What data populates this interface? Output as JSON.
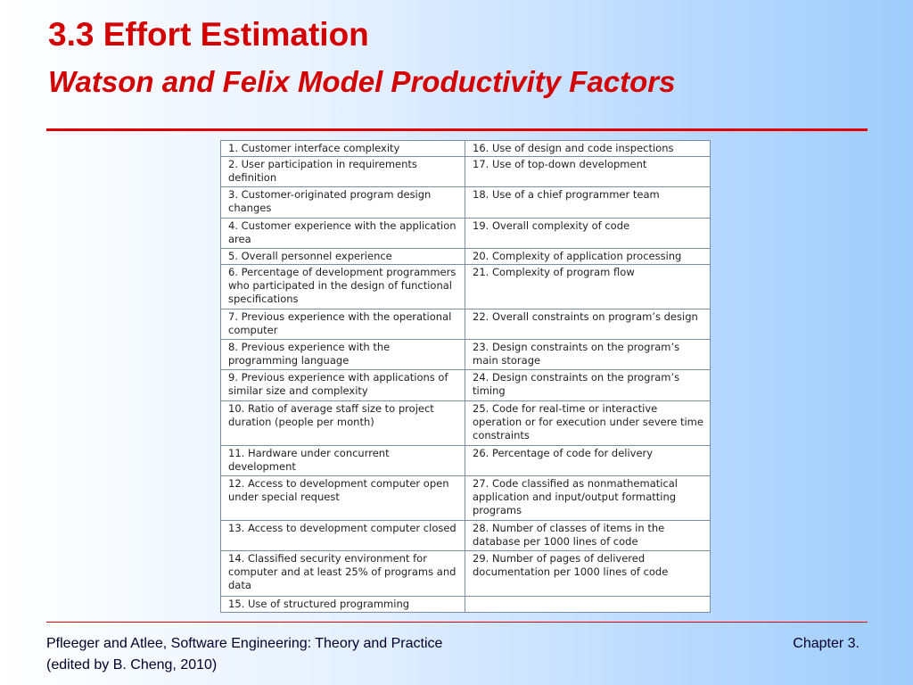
{
  "slide": {
    "title": "3.3 Effort Estimation",
    "subtitle": "Watson and Felix Model Productivity Factors"
  },
  "factors": [
    [
      "1.  Customer interface complexity",
      "16.  Use of design and code inspections"
    ],
    [
      "2.  User participation in requirements definition",
      "17.  Use of top-down development"
    ],
    [
      "3.  Customer-originated program design changes",
      "18.  Use of a chief programmer team"
    ],
    [
      "4.  Customer experience with the application area",
      "19.  Overall complexity of code"
    ],
    [
      "5.  Overall personnel experience",
      "20.  Complexity of application processing"
    ],
    [
      "6.  Percentage of development programmers who participated in the design of functional specifications",
      "21.  Complexity of program flow"
    ],
    [
      "7.  Previous experience with the operational computer",
      "22.  Overall constraints on program’s design"
    ],
    [
      "8.  Previous experience with the programming language",
      "23.  Design constraints on the program’s main storage"
    ],
    [
      "9.  Previous experience with applications of similar size and complexity",
      "24.  Design constraints on the program’s timing"
    ],
    [
      "10.  Ratio of average staff size to project duration (people per month)",
      "25.  Code for real-time or interactive operation or for execution under severe time constraints"
    ],
    [
      "11.  Hardware under concurrent development",
      "26.  Percentage of code for delivery"
    ],
    [
      "12.  Access to development computer open under special request",
      "27.  Code classified as nonmathematical application and input/output formatting programs"
    ],
    [
      "13.  Access to development computer closed",
      "28.  Number of classes of items in the database per 1000 lines of code"
    ],
    [
      "14.  Classified security environment for computer and at least 25% of programs and data",
      "29.  Number of pages of delivered documentation per 1000 lines of code"
    ],
    [
      "15.  Use of structured programming",
      ""
    ]
  ],
  "footer": {
    "line1": "Pfleeger and Atlee, Software Engineering: Theory and Practice",
    "line2": "(edited by B. Cheng, 2010)",
    "chapter": "Chapter 3."
  },
  "colors": {
    "title": "#d40000",
    "rule": "#e00000",
    "table_border": "#7a8fa6",
    "background_start": "#ffffff",
    "background_end": "#9fcdfb"
  }
}
